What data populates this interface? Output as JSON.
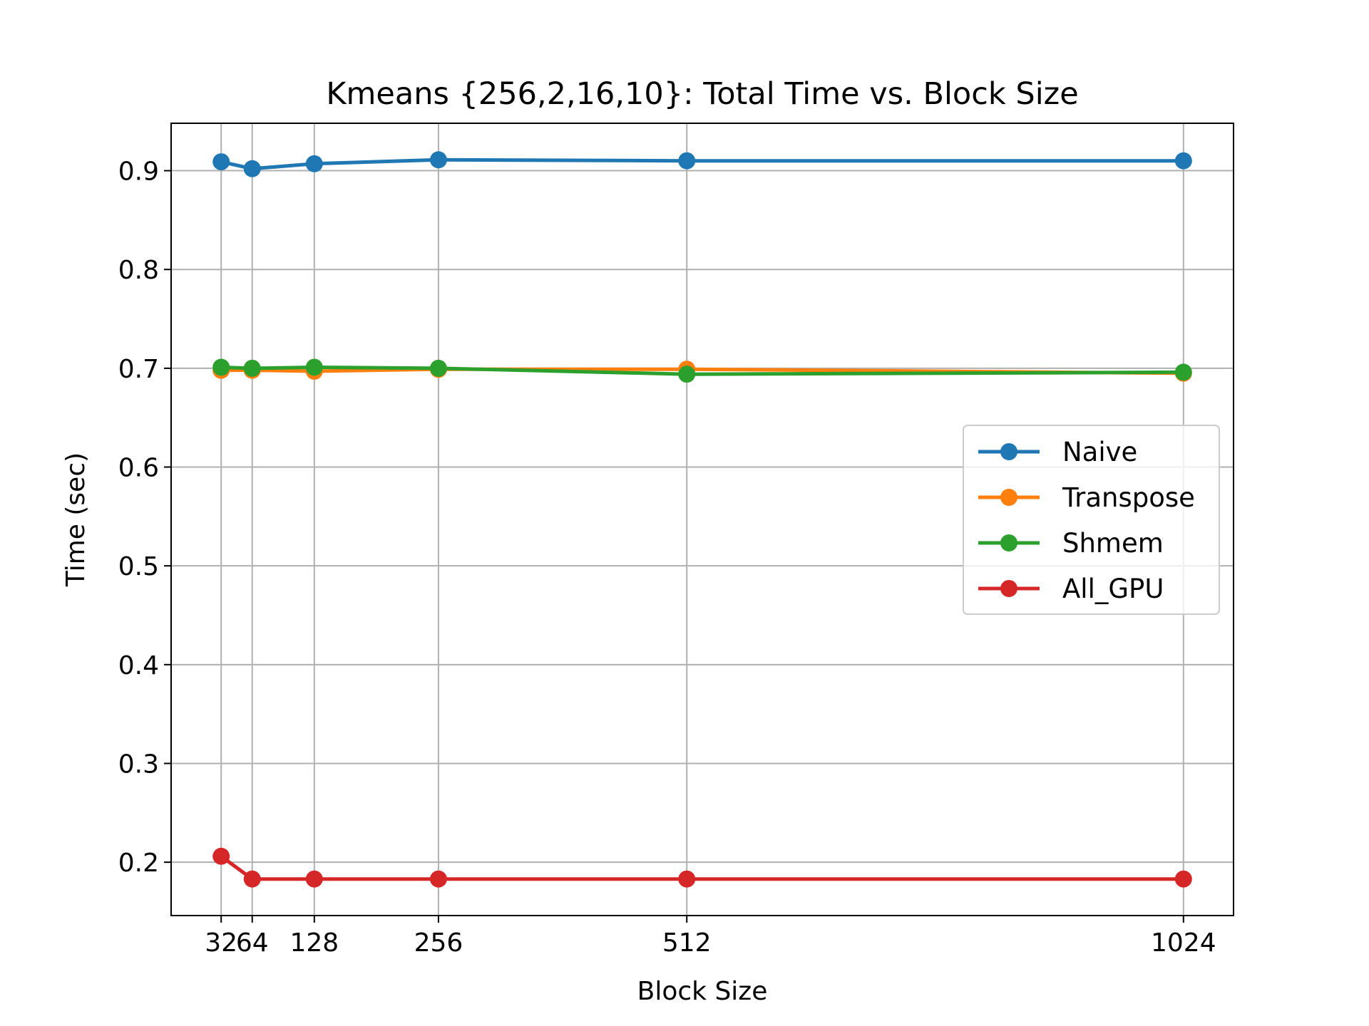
{
  "chart_data": {
    "type": "line",
    "title": "Kmeans {256,2,16,10}: Total Time vs. Block Size",
    "xlabel": "Block Size",
    "ylabel": "Time (sec)",
    "x": [
      32,
      64,
      128,
      256,
      512,
      1024
    ],
    "x_tick_labels": [
      "32",
      "64",
      "128",
      "256",
      "512",
      "1024"
    ],
    "y_ticks": [
      0.2,
      0.3,
      0.4,
      0.5,
      0.6,
      0.7,
      0.8,
      0.9
    ],
    "y_tick_labels": [
      "0.2",
      "0.3",
      "0.4",
      "0.5",
      "0.6",
      "0.7",
      "0.8",
      "0.9"
    ],
    "xlim": [
      -19.6,
      1075.6
    ],
    "ylim": [
      0.146,
      0.948
    ],
    "grid": true,
    "legend_position": "center-right",
    "series": [
      {
        "name": "Naive",
        "color": "#1f77b4",
        "values": [
          0.909,
          0.902,
          0.907,
          0.911,
          0.91,
          0.91
        ]
      },
      {
        "name": "Transpose",
        "color": "#ff7f0e",
        "values": [
          0.698,
          0.698,
          0.697,
          0.699,
          0.699,
          0.695
        ]
      },
      {
        "name": "Shmem",
        "color": "#2ca02c",
        "values": [
          0.701,
          0.7,
          0.701,
          0.7,
          0.694,
          0.696
        ]
      },
      {
        "name": "All_GPU",
        "color": "#d62728",
        "values": [
          0.206,
          0.183,
          0.183,
          0.183,
          0.183,
          0.183
        ]
      }
    ]
  }
}
